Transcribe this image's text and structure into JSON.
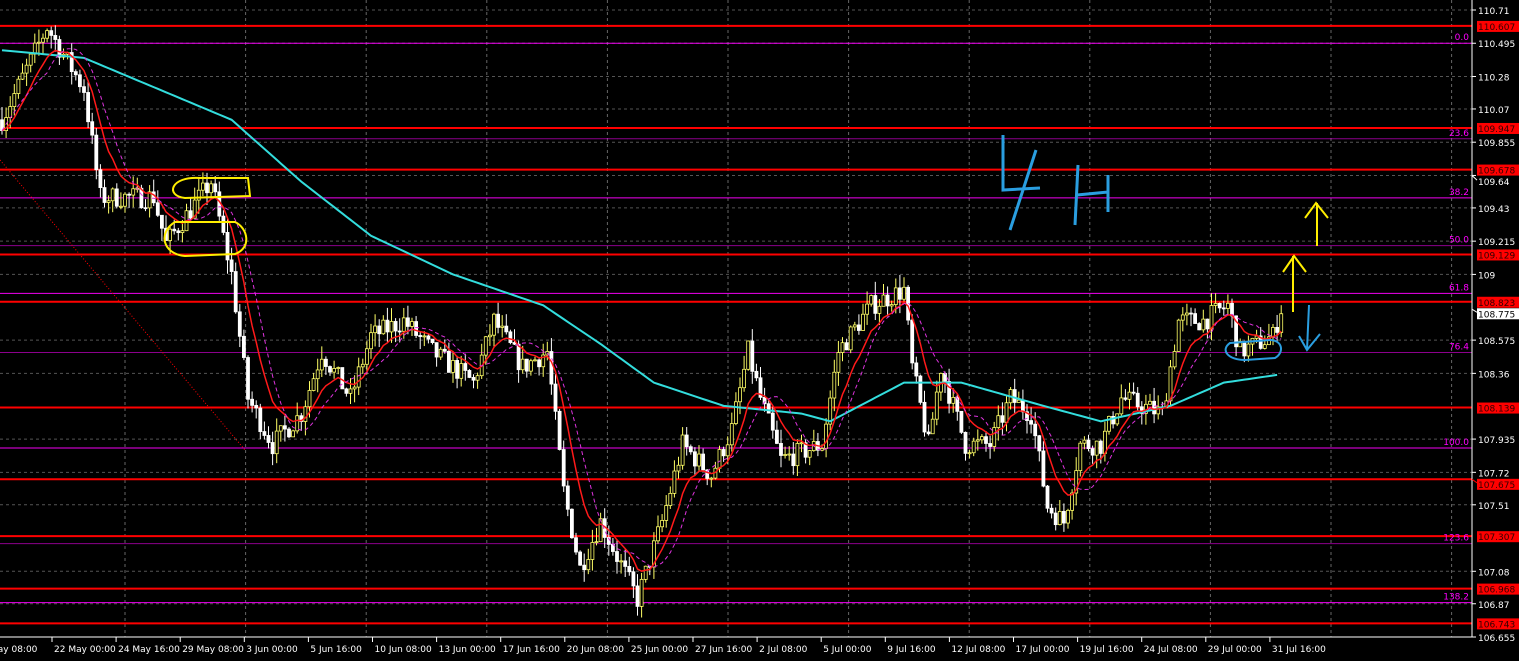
{
  "chart_data": {
    "type": "candlestick",
    "timeframe_annotation": "4H",
    "y_range": [
      106.655,
      110.71
    ],
    "y_ticks": [
      110.71,
      110.495,
      110.28,
      110.07,
      109.855,
      109.64,
      109.43,
      109.215,
      109.0,
      108.575,
      108.36,
      107.935,
      107.72,
      107.51,
      107.08,
      106.87,
      106.655
    ],
    "x_tick_labels": [
      "May 08:00",
      "22 May 00:00",
      "24 May 16:00",
      "29 May 08:00",
      "3 Jun 00:00",
      "5 Jun 16:00",
      "10 Jun 08:00",
      "13 Jun 00:00",
      "17 Jun 16:00",
      "20 Jun 08:00",
      "25 Jun 00:00",
      "27 Jun 16:00",
      "2 Jul 08:00",
      "5 Jul 00:00",
      "9 Jul 16:00",
      "12 Jul 08:00",
      "17 Jul 00:00",
      "19 Jul 16:00",
      "24 Jul 08:00",
      "29 Jul 00:00",
      "31 Jul 16:00"
    ],
    "current_price": 108.775,
    "horizontal_levels": [
      110.607,
      109.947,
      109.678,
      109.129,
      108.823,
      108.139,
      107.675,
      107.307,
      106.968,
      106.743
    ],
    "fibonacci": {
      "from": 110.495,
      "to": 107.877,
      "levels": [
        {
          "label": "0.0",
          "price": 110.495
        },
        {
          "label": "23.6",
          "price": 109.877
        },
        {
          "label": "38.2",
          "price": 109.495
        },
        {
          "label": "50.0",
          "price": 109.186
        },
        {
          "label": "61.8",
          "price": 108.877
        },
        {
          "label": "76.4",
          "price": 108.495
        },
        {
          "label": "100.0",
          "price": 107.877
        },
        {
          "label": "123.6",
          "price": 107.259
        },
        {
          "label": "138.2",
          "price": 106.877
        }
      ]
    },
    "price_path_by_bar": [
      [
        0,
        110.0
      ],
      [
        11,
        110.6
      ],
      [
        20,
        110.2
      ],
      [
        24,
        109.5
      ],
      [
        37,
        109.5
      ],
      [
        40,
        109.2
      ],
      [
        51,
        109.6
      ],
      [
        56,
        109.0
      ],
      [
        60,
        108.2
      ],
      [
        66,
        107.9
      ],
      [
        73,
        108.1
      ],
      [
        78,
        108.5
      ],
      [
        85,
        108.2
      ],
      [
        90,
        108.6
      ],
      [
        98,
        108.7
      ],
      [
        105,
        108.5
      ],
      [
        115,
        108.3
      ],
      [
        120,
        108.7
      ],
      [
        127,
        108.4
      ],
      [
        133,
        108.5
      ],
      [
        137,
        107.6
      ],
      [
        141,
        107.1
      ],
      [
        146,
        107.4
      ],
      [
        155,
        106.9
      ],
      [
        161,
        107.4
      ],
      [
        166,
        107.9
      ],
      [
        173,
        107.7
      ],
      [
        178,
        108.0
      ],
      [
        182,
        108.5
      ],
      [
        185,
        108.2
      ],
      [
        190,
        107.8
      ],
      [
        200,
        107.9
      ],
      [
        204,
        108.5
      ],
      [
        212,
        108.8
      ],
      [
        220,
        108.9
      ],
      [
        222,
        108.4
      ],
      [
        226,
        107.9
      ],
      [
        229,
        108.4
      ],
      [
        235,
        107.9
      ],
      [
        241,
        107.9
      ],
      [
        246,
        108.2
      ],
      [
        251,
        108.1
      ],
      [
        255,
        107.5
      ],
      [
        259,
        107.4
      ],
      [
        263,
        107.9
      ],
      [
        268,
        107.9
      ],
      [
        273,
        108.2
      ],
      [
        283,
        108.1
      ],
      [
        287,
        108.7
      ],
      [
        293,
        108.7
      ],
      [
        299,
        108.8
      ],
      [
        302,
        108.5
      ],
      [
        310,
        108.6
      ],
      [
        312,
        108.78
      ]
    ],
    "slow_ma_by_bar": [
      [
        0,
        110.45
      ],
      [
        20,
        110.4
      ],
      [
        56,
        110.0
      ],
      [
        73,
        109.6
      ],
      [
        90,
        109.25
      ],
      [
        110,
        109.0
      ],
      [
        132,
        108.8
      ],
      [
        146,
        108.55
      ],
      [
        159,
        108.3
      ],
      [
        176,
        108.15
      ],
      [
        195,
        108.1
      ],
      [
        202,
        108.05
      ],
      [
        220,
        108.3
      ],
      [
        234,
        108.3
      ],
      [
        254,
        108.15
      ],
      [
        268,
        108.05
      ],
      [
        285,
        108.15
      ],
      [
        298,
        108.3
      ],
      [
        311,
        108.35
      ]
    ],
    "colors": {
      "background": "#000000",
      "bull_candle": "#ffff66",
      "bear_candle": "#ffffff",
      "levels": "#ff0000",
      "fibonacci": "#ff00ff",
      "slow_ma": "#33dddd",
      "fast_ma": "#ff1a1a",
      "signal_ma": "#dd33dd",
      "annotation_yellow": "#ffee00",
      "annotation_blue": "#2a9ee0",
      "current_price_label": "#ffffff"
    }
  }
}
